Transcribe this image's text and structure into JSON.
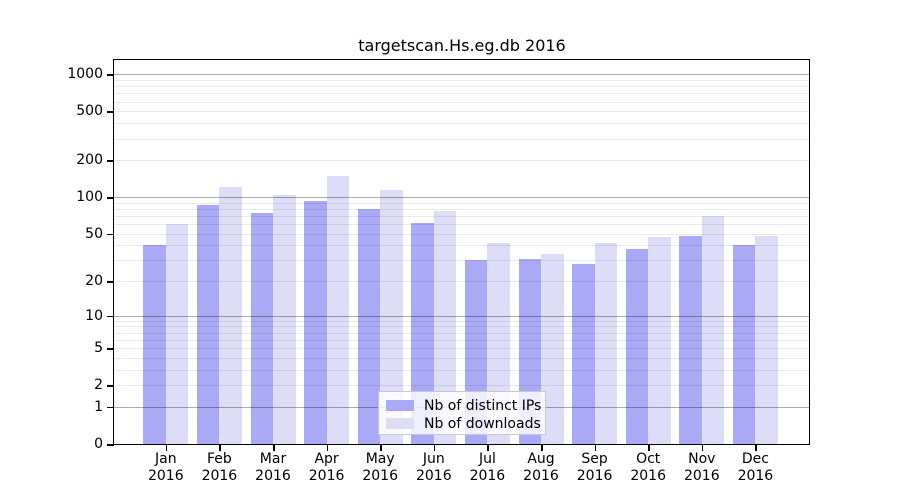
{
  "chart_data": {
    "type": "bar",
    "title": "targetscan.Hs.eg.db 2016",
    "categories": [
      "Jan 2016",
      "Feb 2016",
      "Mar 2016",
      "Apr 2016",
      "May 2016",
      "Jun 2016",
      "Jul 2016",
      "Aug 2016",
      "Sep 2016",
      "Oct 2016",
      "Nov 2016",
      "Dec 2016"
    ],
    "category_months": [
      "Jan",
      "Feb",
      "Mar",
      "Apr",
      "May",
      "Jun",
      "Jul",
      "Aug",
      "Sep",
      "Oct",
      "Nov",
      "Dec"
    ],
    "category_year": "2016",
    "series": [
      {
        "name": "Nb of distinct IPs",
        "color": "#a9a9f5",
        "values": [
          40,
          86,
          74,
          93,
          80,
          61,
          30,
          31,
          28,
          37,
          48,
          40
        ]
      },
      {
        "name": "Nb of downloads",
        "color": "#ddddf7",
        "values": [
          60,
          120,
          105,
          150,
          114,
          77,
          42,
          34,
          42,
          47,
          70,
          48
        ]
      }
    ],
    "xlabel": "",
    "ylabel": "",
    "y_axis": {
      "scale": "log10(1+x)",
      "tick_values": [
        1000,
        500,
        200,
        100,
        50,
        20,
        10,
        5,
        2,
        1,
        0
      ],
      "ylim": [
        0,
        1300
      ]
    },
    "grid": {
      "orientation": "horizontal",
      "major_lines_at": [
        1,
        10,
        100,
        1000
      ],
      "minor_lines": "2-9 multiples of powers of 10"
    },
    "legend": {
      "position": "inside-bottom-center",
      "entries": [
        "Nb of distinct IPs",
        "Nb of downloads"
      ]
    }
  },
  "colors": {
    "background": "#ffffff",
    "bar_distinct_ips": "#a9a9f5",
    "bar_downloads": "#ddddf7",
    "axis": "#000000",
    "grid_major": "#adadad",
    "grid_minor": "#e9e9e9",
    "legend_border": "#c8c8c8"
  }
}
